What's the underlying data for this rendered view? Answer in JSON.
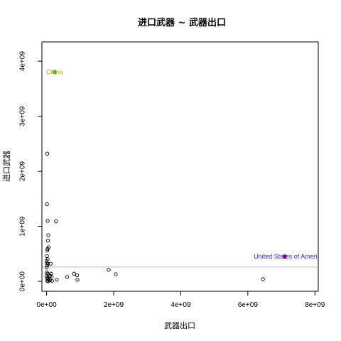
{
  "chart_data": {
    "type": "scatter",
    "title": "进口武器 ~ 武器出口",
    "xlabel": "武器出口",
    "ylabel": "进口武器",
    "xlim": [
      -140000000.0,
      8100000000.0
    ],
    "ylim": [
      -180000000.0,
      4350000000.0
    ],
    "x_ticks": [
      0,
      2000000000,
      4000000000,
      6000000000,
      8000000000
    ],
    "x_tick_labels": [
      "0e+00",
      "2e+09",
      "4e+09",
      "6e+09",
      "8e+09"
    ],
    "y_ticks": [
      0,
      1000000000,
      2000000000,
      3000000000,
      4000000000
    ],
    "y_tick_labels": [
      "0e+00",
      "1e+09",
      "2e+09",
      "3e+09",
      "4e+09"
    ],
    "grid": false,
    "reference_line": {
      "orientation": "horizontal",
      "y": 260000000,
      "color": "#bbbbbb"
    },
    "points": [
      {
        "x": 20000000,
        "y": 2320000000
      },
      {
        "x": 10000000,
        "y": 1400000000
      },
      {
        "x": 30000000,
        "y": 1100000000
      },
      {
        "x": 280000000,
        "y": 1090000000
      },
      {
        "x": 50000000,
        "y": 840000000
      },
      {
        "x": 40000000,
        "y": 740000000
      },
      {
        "x": 60000000,
        "y": 620000000
      },
      {
        "x": 30000000,
        "y": 590000000
      },
      {
        "x": 20000000,
        "y": 560000000
      },
      {
        "x": 10000000,
        "y": 460000000
      },
      {
        "x": 30000000,
        "y": 400000000
      },
      {
        "x": 0,
        "y": 370000000
      },
      {
        "x": 10000000,
        "y": 330000000
      },
      {
        "x": 40000000,
        "y": 320000000
      },
      {
        "x": 120000000,
        "y": 320000000
      },
      {
        "x": 20000000,
        "y": 290000000
      },
      {
        "x": 0,
        "y": 250000000
      },
      {
        "x": 10000000,
        "y": 160000000
      },
      {
        "x": 30000000,
        "y": 140000000
      },
      {
        "x": 60000000,
        "y": 120000000
      },
      {
        "x": 0,
        "y": 100000000
      },
      {
        "x": 100000000,
        "y": 100000000
      },
      {
        "x": 130000000,
        "y": 140000000
      },
      {
        "x": 150000000,
        "y": 90000000
      },
      {
        "x": 10000000,
        "y": 60000000
      },
      {
        "x": 40000000,
        "y": 40000000
      },
      {
        "x": 70000000,
        "y": 30000000
      },
      {
        "x": 20000000,
        "y": 10000000
      },
      {
        "x": 50000000,
        "y": 0
      },
      {
        "x": 100000000,
        "y": 20000000
      },
      {
        "x": 160000000,
        "y": 10000000
      },
      {
        "x": 300000000,
        "y": 30000000
      },
      {
        "x": 610000000,
        "y": 80000000
      },
      {
        "x": 820000000,
        "y": 140000000
      },
      {
        "x": 910000000,
        "y": 110000000
      },
      {
        "x": 920000000,
        "y": 30000000
      },
      {
        "x": 1850000000,
        "y": 210000000
      },
      {
        "x": 2060000000,
        "y": 130000000
      },
      {
        "x": 6450000000,
        "y": 40000000
      }
    ],
    "highlights": [
      {
        "label": "China",
        "x": 240000000,
        "y": 3800000000,
        "color": "#2db52d",
        "label_color": "#d9a400",
        "label_anchor": "middle",
        "label_offset_x": 0
      },
      {
        "label": "United States of Ameri",
        "x": 7100000000,
        "y": 450000000,
        "color": "#cc0033",
        "label_color": "#1f1fff",
        "label_anchor": "end",
        "label_offset_x": 46
      }
    ]
  }
}
